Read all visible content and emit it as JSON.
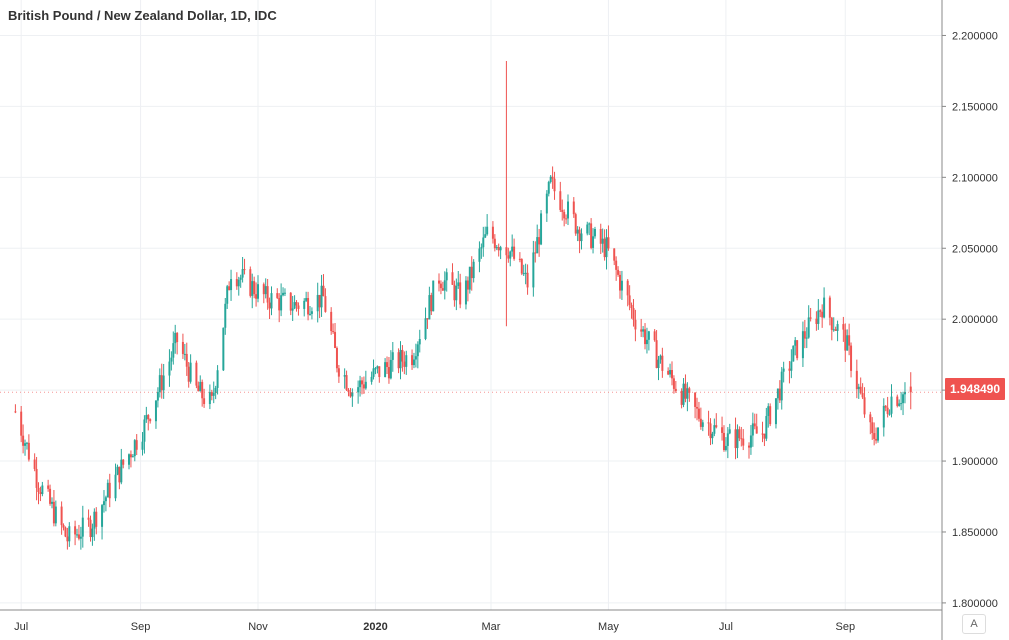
{
  "chart_data": {
    "type": "candlestick",
    "title": "British Pound / New Zealand Dollar, 1D, IDC",
    "x_ticks": [
      "Jul",
      "Sep",
      "Nov",
      "2020",
      "Mar",
      "May",
      "Jul",
      "Sep"
    ],
    "y_ticks": [
      "2.200000",
      "2.150000",
      "2.100000",
      "2.050000",
      "2.000000",
      "1.950000",
      "1.900000",
      "1.850000",
      "1.800000"
    ],
    "y_tick_values": [
      2.2,
      2.15,
      2.1,
      2.05,
      2.0,
      1.95,
      1.9,
      1.85,
      1.8
    ],
    "ylim": [
      1.795,
      2.225
    ],
    "last_price": "1.948490",
    "last_price_value": 1.94849,
    "colors": {
      "up": "#26a69a",
      "down": "#ef5350",
      "grid": "#eef0f3",
      "axis": "#888888",
      "text": "#333333"
    },
    "trend_points": [
      {
        "date": "2019-06-28",
        "close": 1.935
      },
      {
        "date": "2019-07-10",
        "close": 1.885
      },
      {
        "date": "2019-07-25",
        "close": 1.845
      },
      {
        "date": "2019-08-06",
        "close": 1.855
      },
      {
        "date": "2019-08-20",
        "close": 1.89
      },
      {
        "date": "2019-09-03",
        "close": 1.925
      },
      {
        "date": "2019-09-20",
        "close": 1.985
      },
      {
        "date": "2019-09-30",
        "close": 1.95
      },
      {
        "date": "2019-10-08",
        "close": 1.94
      },
      {
        "date": "2019-10-18",
        "close": 2.035
      },
      {
        "date": "2019-11-05",
        "close": 2.015
      },
      {
        "date": "2019-11-20",
        "close": 2.01
      },
      {
        "date": "2019-12-05",
        "close": 2.015
      },
      {
        "date": "2019-12-12",
        "close": 1.97
      },
      {
        "date": "2019-12-20",
        "close": 1.95
      },
      {
        "date": "2020-01-05",
        "close": 1.965
      },
      {
        "date": "2020-01-20",
        "close": 1.975
      },
      {
        "date": "2020-02-03",
        "close": 2.03
      },
      {
        "date": "2020-02-15",
        "close": 2.015
      },
      {
        "date": "2020-02-28",
        "close": 2.06
      },
      {
        "date": "2020-03-10",
        "close": 2.05
      },
      {
        "date": "2020-03-20",
        "close": 2.025
      },
      {
        "date": "2020-04-01",
        "close": 2.095
      },
      {
        "date": "2020-04-15",
        "close": 2.065
      },
      {
        "date": "2020-04-30",
        "close": 2.05
      },
      {
        "date": "2020-05-15",
        "close": 2.0
      },
      {
        "date": "2020-05-30",
        "close": 1.965
      },
      {
        "date": "2020-06-15",
        "close": 1.935
      },
      {
        "date": "2020-07-01",
        "close": 1.915
      },
      {
        "date": "2020-07-20",
        "close": 1.92
      },
      {
        "date": "2020-08-05",
        "close": 1.975
      },
      {
        "date": "2020-08-20",
        "close": 2.01
      },
      {
        "date": "2020-09-01",
        "close": 1.985
      },
      {
        "date": "2020-09-15",
        "close": 1.915
      },
      {
        "date": "2020-09-25",
        "close": 1.945
      },
      {
        "date": "2020-10-05",
        "close": 1.948
      }
    ],
    "spikes": [
      {
        "date": "2020-03-09",
        "high": 2.182,
        "low": 1.995
      }
    ]
  },
  "controls": {
    "auto_label": "A"
  }
}
